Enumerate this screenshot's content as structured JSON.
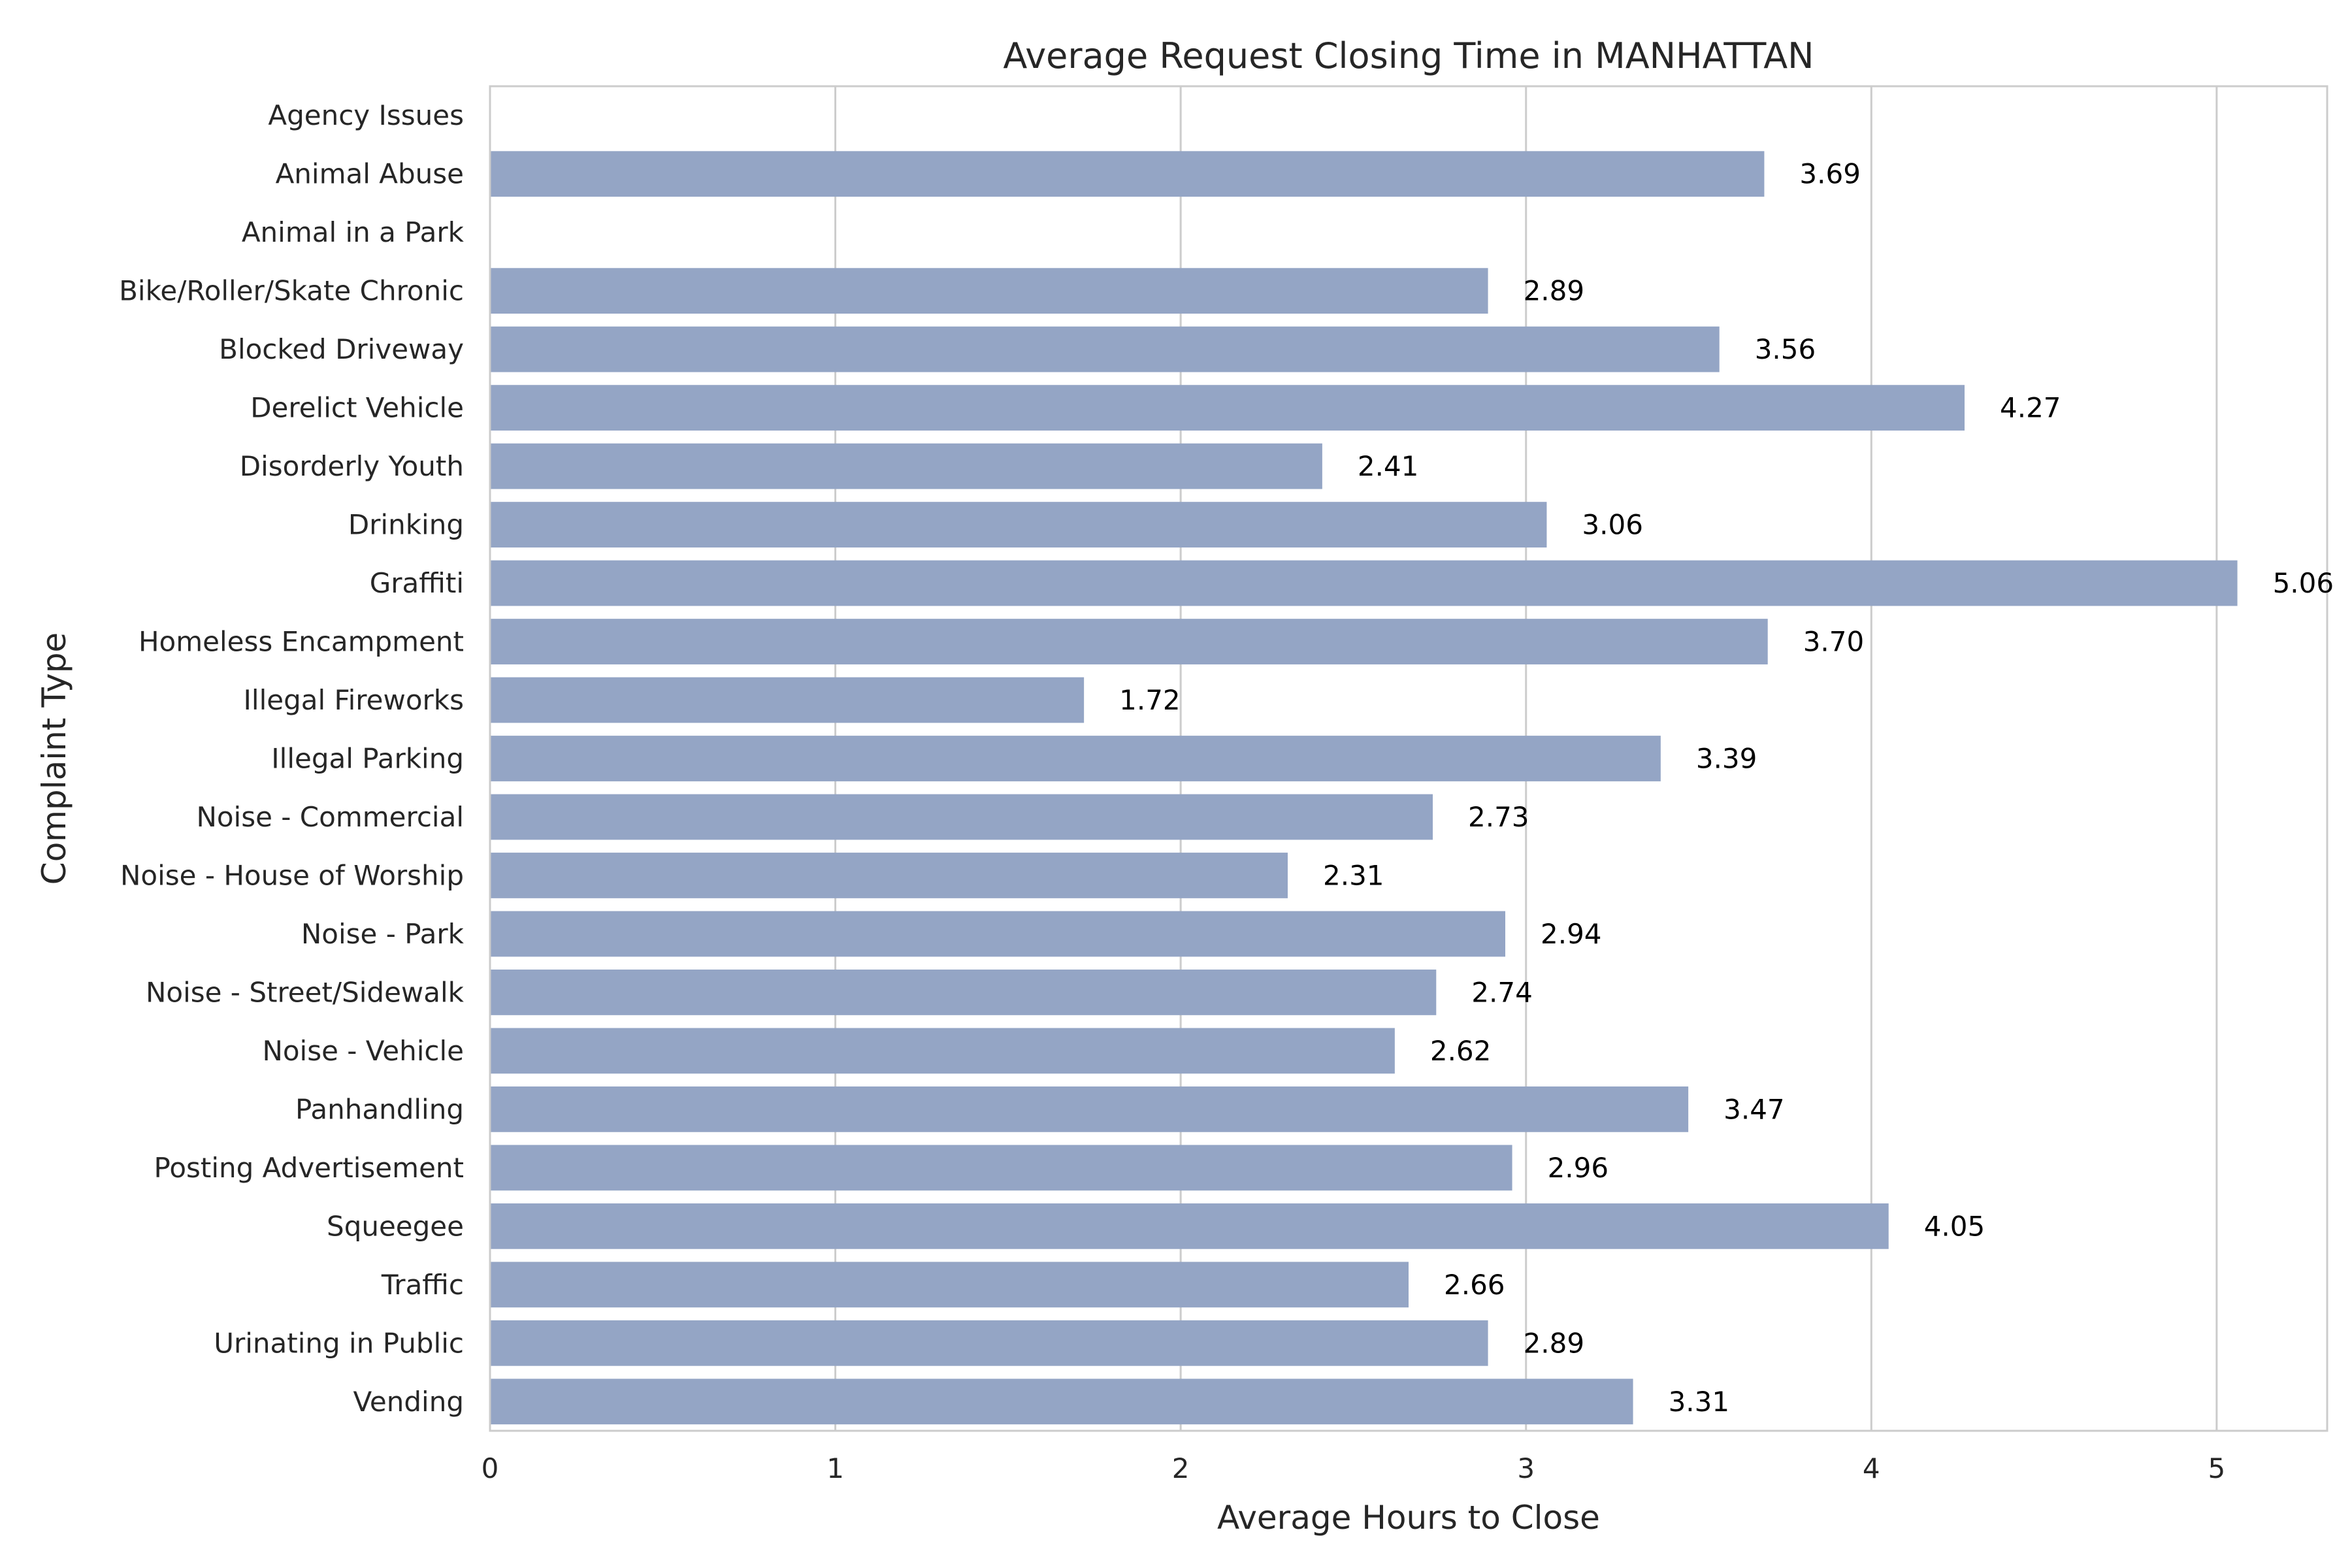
{
  "chart_data": {
    "type": "bar",
    "orientation": "horizontal",
    "title": "Average Request Closing Time in MANHATTAN",
    "xlabel": "Average Hours to Close",
    "ylabel": "Complaint Type",
    "xlim": [
      0,
      5.32
    ],
    "xticks": [
      0,
      1,
      2,
      3,
      4,
      5
    ],
    "grid": true,
    "bar_color": "#94a5c5",
    "categories": [
      "Agency Issues",
      "Animal Abuse",
      "Animal in a Park",
      "Bike/Roller/Skate Chronic",
      "Blocked Driveway",
      "Derelict Vehicle",
      "Disorderly Youth",
      "Drinking",
      "Graffiti",
      "Homeless Encampment",
      "Illegal Fireworks",
      "Illegal Parking",
      "Noise - Commercial",
      "Noise - House of Worship",
      "Noise - Park",
      "Noise - Street/Sidewalk",
      "Noise - Vehicle",
      "Panhandling",
      "Posting Advertisement",
      "Squeegee",
      "Traffic",
      "Urinating in Public",
      "Vending"
    ],
    "values": [
      null,
      3.69,
      null,
      2.89,
      3.56,
      4.27,
      2.41,
      3.06,
      5.06,
      3.7,
      1.72,
      3.39,
      2.73,
      2.31,
      2.94,
      2.74,
      2.62,
      3.47,
      2.96,
      4.05,
      2.66,
      2.89,
      3.31
    ],
    "value_labels": [
      "",
      "3.69",
      "",
      "2.89",
      "3.56",
      "4.27",
      "2.41",
      "3.06",
      "5.06",
      "3.70",
      "1.72",
      "3.39",
      "2.73",
      "2.31",
      "2.94",
      "2.74",
      "2.62",
      "3.47",
      "2.96",
      "4.05",
      "2.66",
      "2.89",
      "3.31"
    ]
  }
}
